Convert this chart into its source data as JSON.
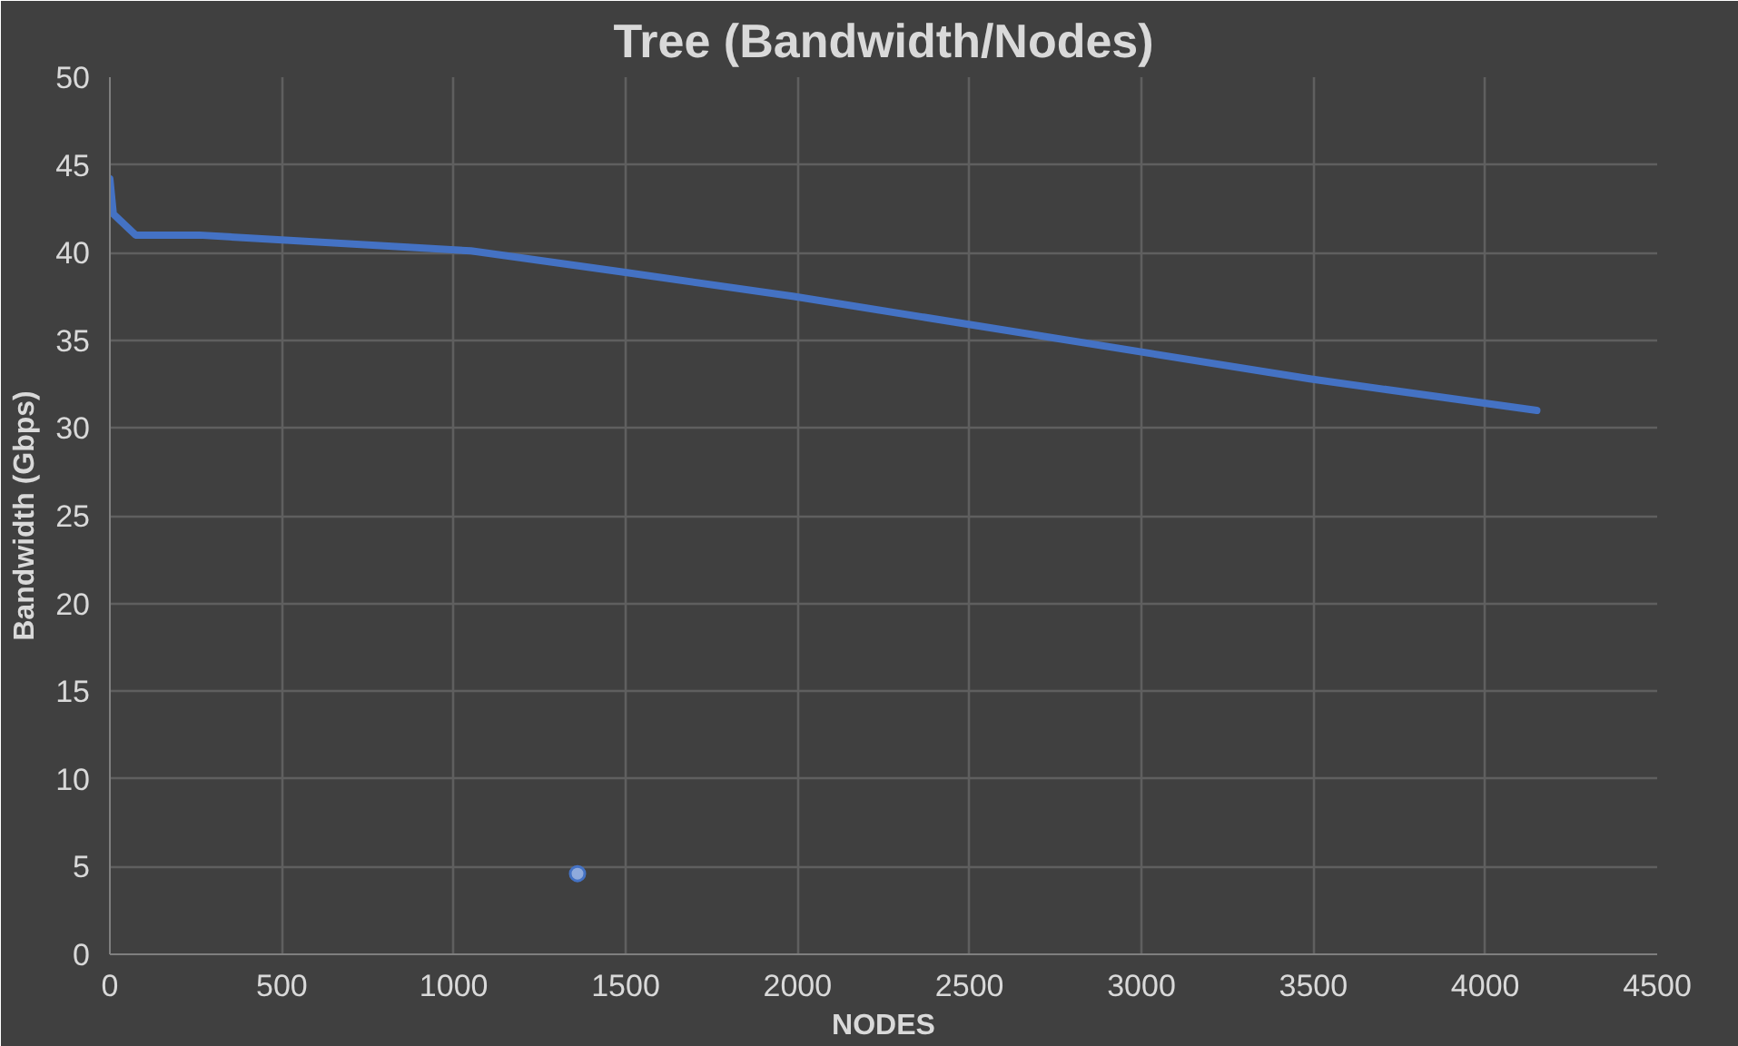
{
  "chart_data": {
    "type": "line",
    "title": "Tree (Bandwidth/Nodes)",
    "xlabel": "NODES",
    "ylabel": "Bandwidth (Gbps)",
    "series": [
      {
        "color": "#4472c4",
        "x": [
          0,
          10,
          75,
          260,
          1050,
          1490,
          1990,
          3490,
          4150
        ],
        "values": [
          44.2,
          42.2,
          41,
          41,
          40.1,
          38.9,
          37.5,
          32.8,
          31
        ]
      },
      {
        "type": "scatter",
        "marker": "circle",
        "color": "#8faadc",
        "x": [
          1360
        ],
        "values": [
          4.6
        ]
      }
    ],
    "xlim": [
      0,
      4500
    ],
    "xticks": [
      0,
      500,
      1000,
      1500,
      2000,
      2500,
      3000,
      3500,
      4000,
      4500
    ],
    "ylim": [
      0,
      50
    ],
    "yticks": [
      0,
      5,
      10,
      15,
      20,
      25,
      30,
      35,
      40,
      45,
      50
    ],
    "grid": true,
    "marker": "none",
    "line_style": "solid"
  }
}
